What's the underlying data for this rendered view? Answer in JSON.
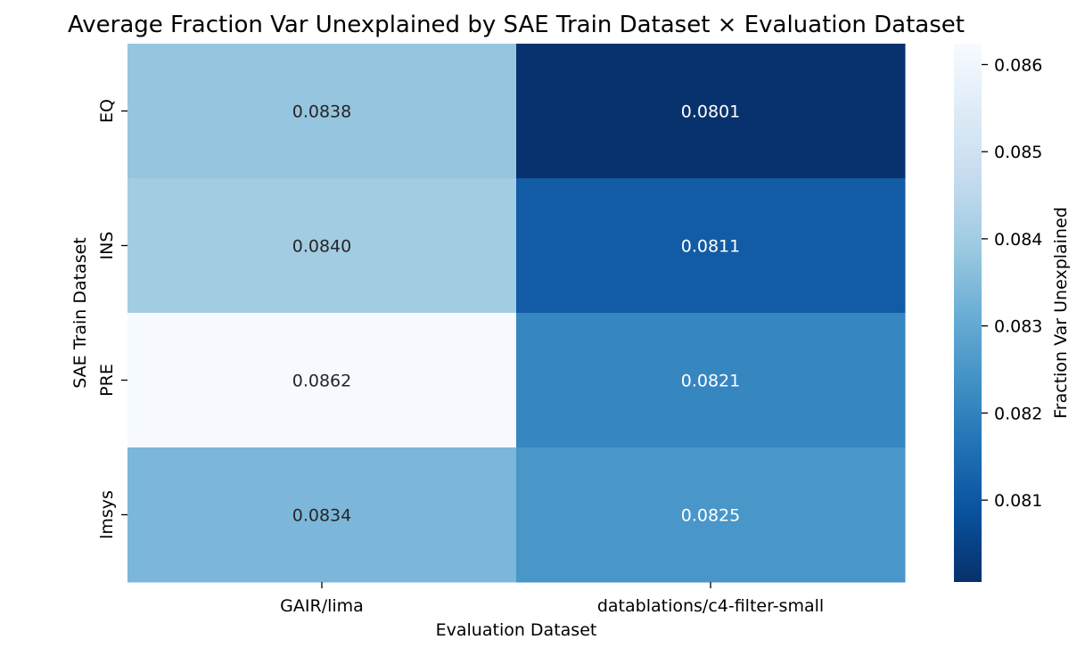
{
  "chart_data": {
    "type": "heatmap",
    "title": "Average Fraction Var Unexplained by SAE Train Dataset × Evaluation Dataset",
    "xlabel": "Evaluation Dataset",
    "ylabel": "SAE Train Dataset",
    "x_categories": [
      "GAIR/lima",
      "datablations/c4-filter-small"
    ],
    "y_categories": [
      "EQ",
      "INS",
      "PRE",
      "lmsys"
    ],
    "values": [
      [
        0.0838,
        0.0801
      ],
      [
        0.084,
        0.0811
      ],
      [
        0.0862,
        0.0821
      ],
      [
        0.0834,
        0.0825
      ]
    ],
    "value_labels": [
      [
        "0.0838",
        "0.0801"
      ],
      [
        "0.0840",
        "0.0811"
      ],
      [
        "0.0862",
        "0.0821"
      ],
      [
        "0.0834",
        "0.0825"
      ]
    ],
    "colormap": "Blues_r",
    "colorbar": {
      "label": "Fraction Var Unexplained",
      "range": [
        0.08006,
        0.08624
      ],
      "ticks": [
        0.081,
        0.082,
        0.083,
        0.084,
        0.085,
        0.086
      ],
      "tick_labels": [
        "0.081",
        "0.082",
        "0.083",
        "0.084",
        "0.085",
        "0.086"
      ]
    }
  }
}
